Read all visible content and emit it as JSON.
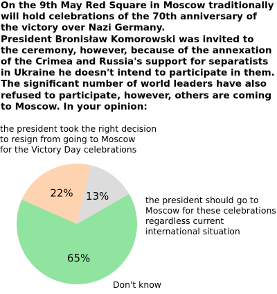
{
  "question": "On the 9th May Red Square in Moscow traditionally\nwill hold celebrations of the 70th anniversary of\nthe victory over Nazi Germany.\nPresident Bronisław Komorowski was invited to\nthe ceremony, however, because of the annexation\nof the Crimea and Russia's support for separatists\nin Ukraine he doesn't intend to participate in them.\nThe significant number of world leaders have also\nrefused to participate, however, others are coming\nto Moscow. In your opinion:",
  "chart_data": {
    "type": "pie",
    "title": "",
    "slices": [
      {
        "label": "the president took the right decision\nto resign from going to Moscow\nfor the Victory Day celebrations",
        "value": 65,
        "value_label": "65%",
        "color": "#90e4a0"
      },
      {
        "label": "the president should go to\nMoscow for these celebrations\nregardless current\ninternational situation",
        "value": 22,
        "value_label": "22%",
        "color": "#fdd3b0"
      },
      {
        "label": "Don't know",
        "value": 13,
        "value_label": "13%",
        "color": "#dcdcdc"
      }
    ]
  }
}
